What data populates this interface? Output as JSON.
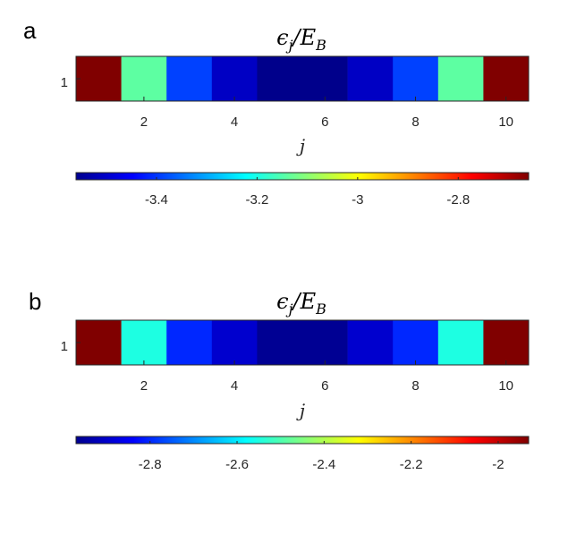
{
  "chart_data": [
    {
      "type": "heatmap",
      "panel_label": "a",
      "title": "ϵj/EB",
      "title_parts": {
        "main": "ϵ",
        "sub": "j",
        "slash": "/",
        "E": "E",
        "Esub": "B"
      },
      "xlabel": "j",
      "ylabel": "",
      "x": [
        1,
        2,
        3,
        4,
        5,
        6,
        7,
        8,
        9,
        10
      ],
      "x_ticks": [
        "2",
        "4",
        "6",
        "8",
        "10"
      ],
      "y_ticks": [
        "1"
      ],
      "values": [
        -2.66,
        -3.14,
        -3.39,
        -3.5,
        -3.55,
        -3.55,
        -3.5,
        -3.39,
        -3.14,
        -2.66
      ],
      "colormap": "jet",
      "clim": [
        -3.56,
        -2.66
      ],
      "colorbar": {
        "orientation": "horizontal",
        "ticks": [
          "-3.4",
          "-3.2",
          "-3",
          "-2.8"
        ]
      }
    },
    {
      "type": "heatmap",
      "panel_label": "b",
      "title": "ϵj/EB",
      "title_parts": {
        "main": "ϵ",
        "sub": "j",
        "slash": "/",
        "E": "E",
        "Esub": "B"
      },
      "xlabel": "j",
      "ylabel": "",
      "x": [
        1,
        2,
        3,
        4,
        5,
        6,
        7,
        8,
        9,
        10
      ],
      "x_ticks": [
        "2",
        "4",
        "6",
        "8",
        "10"
      ],
      "y_ticks": [
        "1"
      ],
      "values": [
        -1.93,
        -2.55,
        -2.8,
        -2.89,
        -2.95,
        -2.95,
        -2.89,
        -2.8,
        -2.55,
        -1.93
      ],
      "colormap": "jet",
      "clim": [
        -2.97,
        -1.93
      ],
      "colorbar": {
        "orientation": "horizontal",
        "ticks": [
          "-2.8",
          "-2.6",
          "-2.4",
          "-2.2",
          "-2"
        ]
      }
    }
  ]
}
